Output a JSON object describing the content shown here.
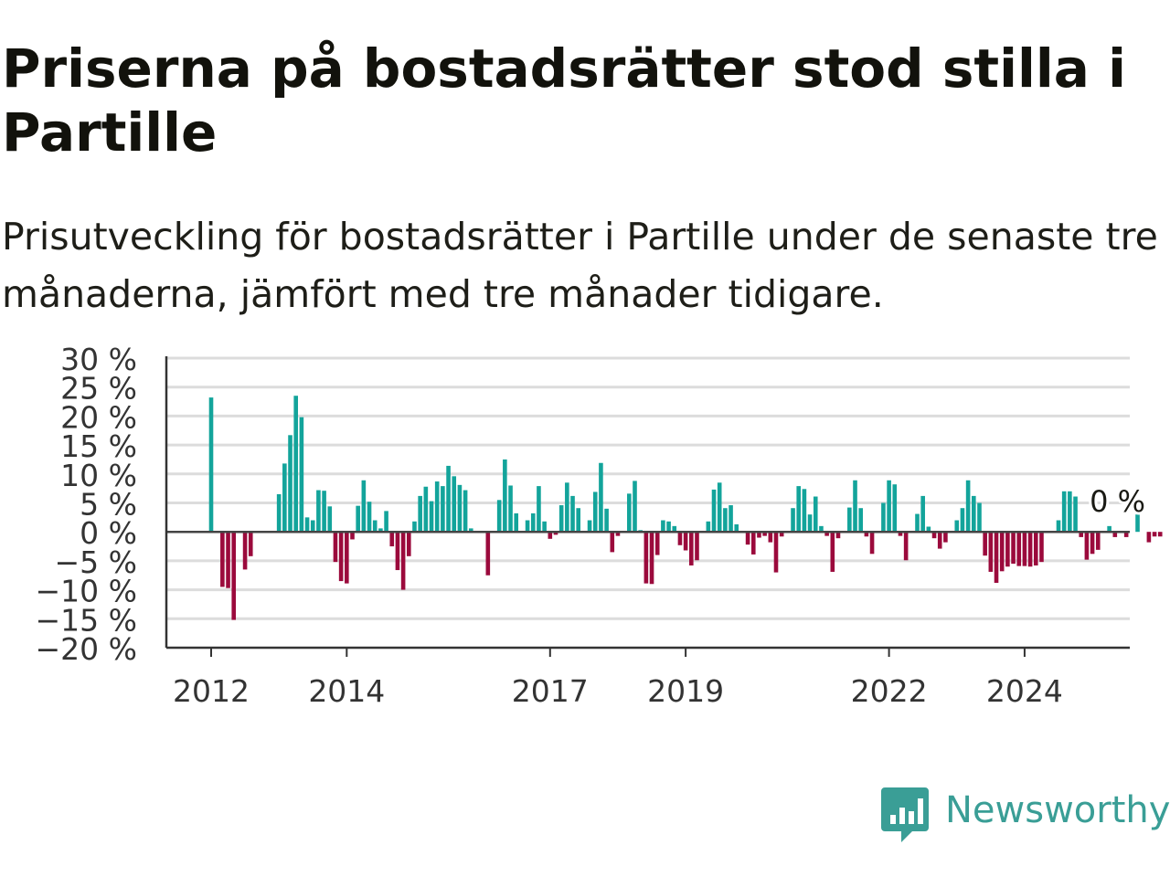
{
  "title": "Priserna på bostadsrätter stod stilla i Partille",
  "subtitle": "Prisutveckling för bostadsrätter i Partille under de senaste tre månaderna, jämfört med tre månader tidigare.",
  "brand": {
    "name": "Newsworthy",
    "icon": "bar-chart-speech-bubble-icon",
    "color": "#3a9e96"
  },
  "chart_data": {
    "type": "bar",
    "x_start": "2012-01",
    "interval": "month",
    "ylim": [
      -20,
      30
    ],
    "y_ticks": [
      30,
      25,
      20,
      15,
      10,
      5,
      0,
      -5,
      -10,
      -15,
      -20
    ],
    "y_tick_labels": [
      "30 %",
      "25 %",
      "20 %",
      "15 %",
      "10 %",
      "5 %",
      "0 %",
      "−5 %",
      "−10 %",
      "−15 %",
      "−20 %"
    ],
    "x_tick_labels": [
      {
        "label": "2012",
        "date": "2012-01"
      },
      {
        "label": "2014",
        "date": "2014-01"
      },
      {
        "label": "2017",
        "date": "2017-01"
      },
      {
        "label": "2019",
        "date": "2019-01"
      },
      {
        "label": "2022",
        "date": "2022-01"
      },
      {
        "label": "2024",
        "date": "2024-01"
      }
    ],
    "grid": true,
    "colors": {
      "positive": "#13a49b",
      "negative": "#9b0a3c",
      "grid": "#dcdcdc",
      "axis": "#333333",
      "zero_line": "#444444"
    },
    "annotation": {
      "text": "0 %",
      "date": "2025-01",
      "value": 0
    },
    "values": [
      23.2,
      null,
      -9.5,
      -9.7,
      -15.2,
      null,
      -6.5,
      -4.2,
      null,
      null,
      null,
      null,
      6.5,
      11.8,
      16.7,
      23.5,
      19.8,
      2.5,
      2.0,
      7.2,
      7.1,
      4.4,
      -5.2,
      -8.5,
      -8.9,
      -1.3,
      4.5,
      8.9,
      5.2,
      2.0,
      0.6,
      3.6,
      -2.5,
      -6.6,
      -10.0,
      -4.2,
      1.8,
      6.2,
      7.8,
      5.3,
      8.7,
      7.9,
      11.4,
      9.6,
      8.1,
      7.2,
      0.6,
      null,
      null,
      -7.5,
      null,
      5.5,
      12.5,
      8.0,
      3.2,
      null,
      2.0,
      3.2,
      7.9,
      1.8,
      -1.2,
      -0.5,
      4.6,
      8.5,
      6.2,
      4.1,
      null,
      2.0,
      6.9,
      11.9,
      4.0,
      -3.5,
      -0.7,
      null,
      6.6,
      8.8,
      0.3,
      -8.9,
      -9.0,
      -4.0,
      2.0,
      1.8,
      1.0,
      -2.3,
      -3.2,
      -5.8,
      -4.9,
      null,
      1.8,
      7.3,
      8.5,
      4.1,
      4.6,
      1.3,
      null,
      -2.2,
      -3.9,
      -1.0,
      -0.7,
      -1.8,
      -7.0,
      -0.8,
      null,
      4.1,
      7.9,
      7.4,
      3.0,
      6.1,
      1.0,
      -0.7,
      -6.9,
      -1.1,
      null,
      4.2,
      8.9,
      4.1,
      -0.8,
      -3.8,
      null,
      5.0,
      8.9,
      8.2,
      -0.7,
      -4.9,
      null,
      3.1,
      6.2,
      0.9,
      -1.1,
      -2.9,
      -1.8,
      null,
      2.0,
      4.1,
      8.9,
      6.2,
      5.0,
      -4.1,
      -6.9,
      -8.8,
      -6.8,
      -6.0,
      -5.5,
      -5.9,
      -5.9,
      -6.0,
      -5.8,
      -5.2,
      null,
      null,
      2.0,
      7.0,
      7.0,
      6.1,
      -0.9,
      -4.8,
      -3.8,
      -3.1,
      null,
      1.0,
      -0.9,
      null,
      -0.9,
      null,
      3.0,
      null,
      -1.8,
      -0.8,
      -0.8,
      null,
      null,
      null
    ]
  }
}
